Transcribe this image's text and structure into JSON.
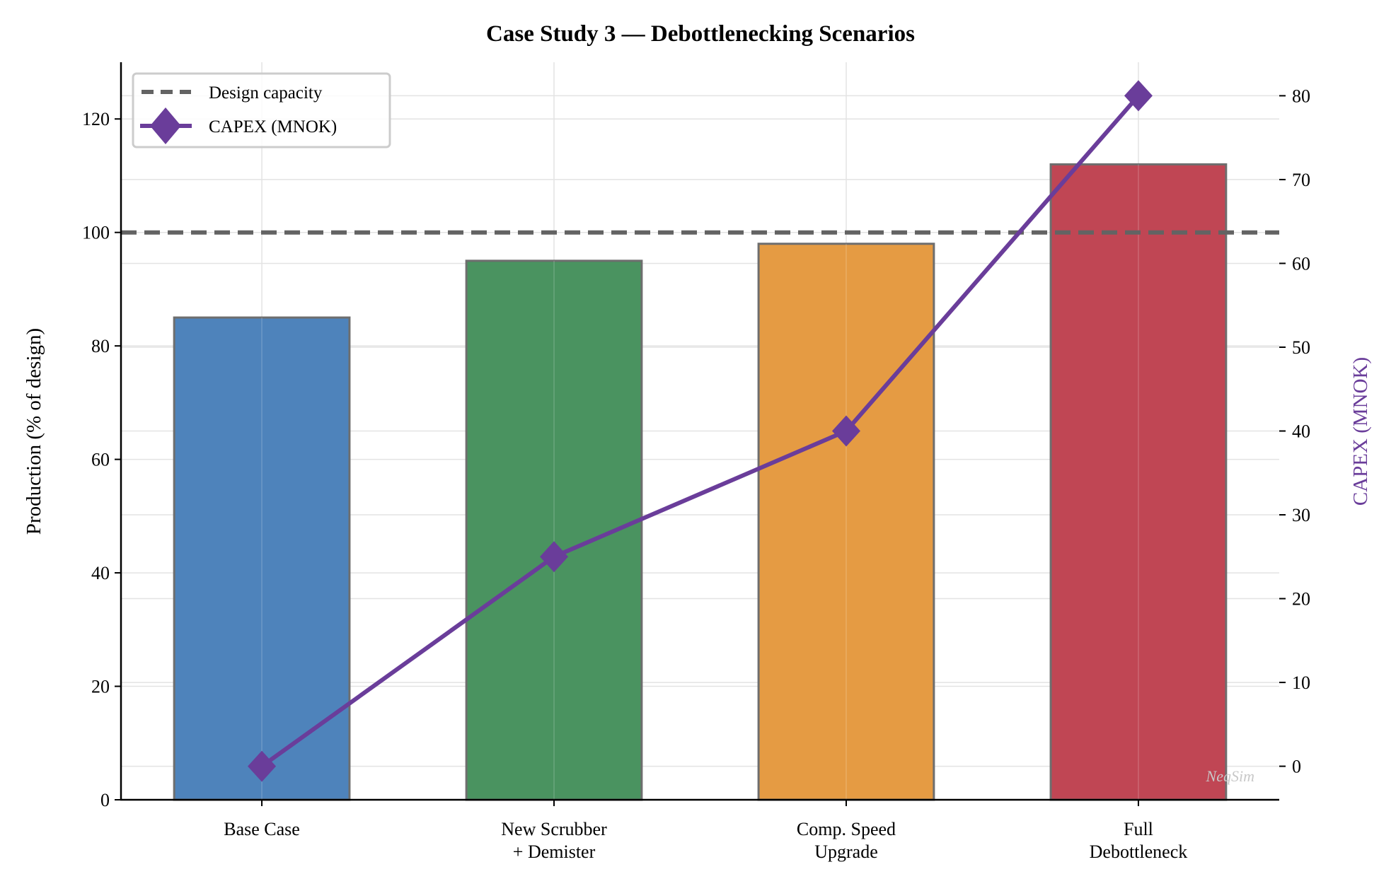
{
  "chart_data": {
    "type": "bar",
    "title": "Case Study 3 — Debottlenecking Scenarios",
    "categories": [
      "Base Case",
      "New Scrubber\n+ Demister",
      "Comp. Speed\nUpgrade",
      "Full\nDebottleneck"
    ],
    "xlabel": "",
    "ylabel": "Production (% of design)",
    "ylim": [
      0,
      130
    ],
    "yticks": [
      0,
      20,
      40,
      60,
      80,
      100,
      120
    ],
    "y2label": "CAPEX (MNOK)",
    "y2lim": [
      -4,
      84
    ],
    "y2ticks": [
      0,
      10,
      20,
      30,
      40,
      50,
      60,
      70,
      80
    ],
    "grid": true,
    "legend_position": "top-left",
    "series": [
      {
        "type": "bar",
        "axis": "left",
        "values": [
          85,
          95,
          98,
          112
        ],
        "colors": [
          "#4e83bb",
          "#4a9360",
          "#e59b43",
          "#c04654"
        ]
      },
      {
        "type": "hline",
        "axis": "left",
        "name": "Design capacity",
        "value": 100,
        "style": "dashed",
        "color": "#636363"
      },
      {
        "type": "line",
        "axis": "right",
        "name": "CAPEX (MNOK)",
        "values": [
          0,
          25,
          40,
          80
        ],
        "marker": "diamond",
        "color": "#6a3d9a"
      }
    ],
    "watermark": "NeqSim"
  }
}
